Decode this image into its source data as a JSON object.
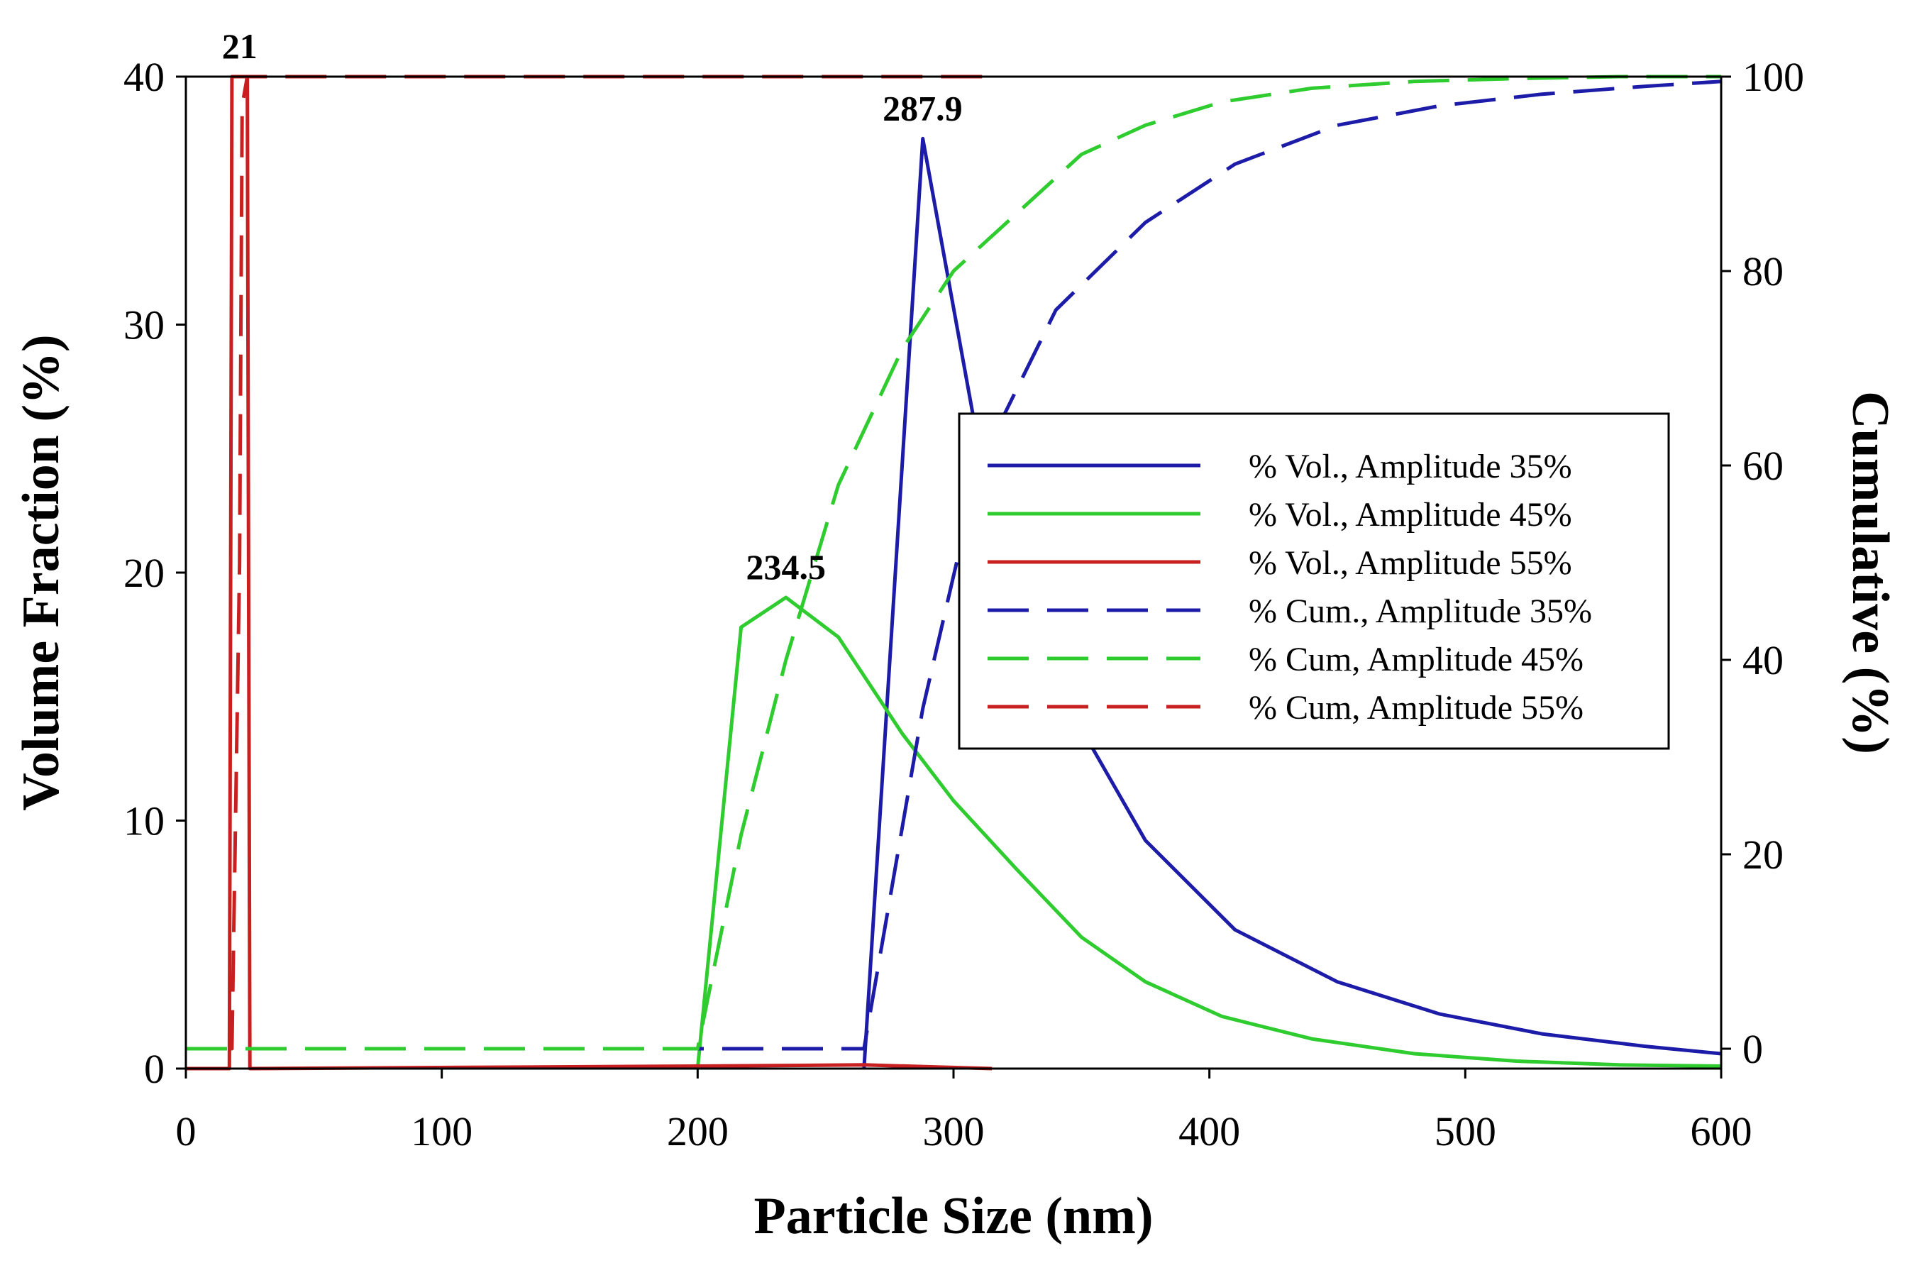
{
  "chart_data": {
    "type": "line",
    "xlabel": "Particle Size (nm)",
    "ylabel": "Volume Fraction (%)",
    "y2label": "Cumulative (%)",
    "xlim": [
      0,
      600
    ],
    "ylim": [
      0,
      40
    ],
    "y2lim": [
      0,
      100
    ],
    "xticks": [
      "0",
      "100",
      "200",
      "300",
      "400",
      "500",
      "600"
    ],
    "yticks": [
      "0",
      "10",
      "20",
      "30",
      "40"
    ],
    "y2ticks": [
      "0",
      "20",
      "40",
      "60",
      "80",
      "100"
    ],
    "grid": false,
    "legend_position": "center-right",
    "annotations": [
      {
        "text": "21",
        "x": 21,
        "y": 40
      },
      {
        "text": "287.9",
        "x": 287.9,
        "y": 37.5
      },
      {
        "text": "234.5",
        "x": 234.5,
        "y": 19
      }
    ],
    "series": [
      {
        "name": "% Vol., Amplitude 35%",
        "axis": "left",
        "style": "solid",
        "color": "#1c1ca8",
        "x": [
          265,
          288,
          310,
          340,
          375,
          410,
          450,
          490,
          530,
          570,
          600
        ],
        "y": [
          0,
          37.5,
          25,
          15.5,
          9.2,
          5.6,
          3.5,
          2.2,
          1.4,
          0.9,
          0.6
        ]
      },
      {
        "name": "% Vol., Amplitude 45%",
        "axis": "left",
        "style": "solid",
        "color": "#2ecc2e",
        "x": [
          200,
          217,
          234.5,
          255,
          280,
          300,
          325,
          350,
          375,
          405,
          440,
          480,
          520,
          560,
          600
        ],
        "y": [
          0,
          17.8,
          19,
          17.4,
          13.5,
          10.8,
          8,
          5.3,
          3.5,
          2.1,
          1.2,
          0.6,
          0.3,
          0.15,
          0.1
        ]
      },
      {
        "name": "% Vol., Amplitude 55%",
        "axis": "left",
        "style": "solid",
        "color": "#c82020",
        "x": [
          0,
          17,
          18,
          21,
          24,
          25,
          200,
          265,
          315
        ],
        "y": [
          0,
          0,
          40,
          40,
          40,
          0,
          0.1,
          0.15,
          0
        ]
      },
      {
        "name": "% Cum., Amplitude 35%",
        "axis": "right",
        "style": "dashed",
        "color": "#1c1ca8",
        "x": [
          0,
          265,
          288,
          310,
          340,
          375,
          410,
          450,
          490,
          530,
          570,
          600
        ],
        "y": [
          0,
          0,
          35,
          60,
          76,
          85,
          91,
          95,
          97,
          98.2,
          99,
          99.5
        ]
      },
      {
        "name": "% Cum, Amplitude 45%",
        "axis": "right",
        "style": "dashed",
        "color": "#2ecc2e",
        "x": [
          0,
          200,
          217,
          234.5,
          255,
          280,
          300,
          325,
          350,
          375,
          405,
          440,
          480,
          520,
          560,
          600
        ],
        "y": [
          0,
          0,
          22,
          40,
          58,
          72,
          80,
          86,
          92,
          95,
          97.4,
          98.8,
          99.5,
          99.8,
          100,
          100
        ]
      },
      {
        "name": "% Cum, Amplitude 55%",
        "axis": "right",
        "style": "dashed",
        "color": "#c82020",
        "x": [
          17,
          18,
          21,
          22,
          24,
          315
        ],
        "y": [
          0,
          0,
          50,
          97,
          100,
          100
        ]
      }
    ]
  }
}
